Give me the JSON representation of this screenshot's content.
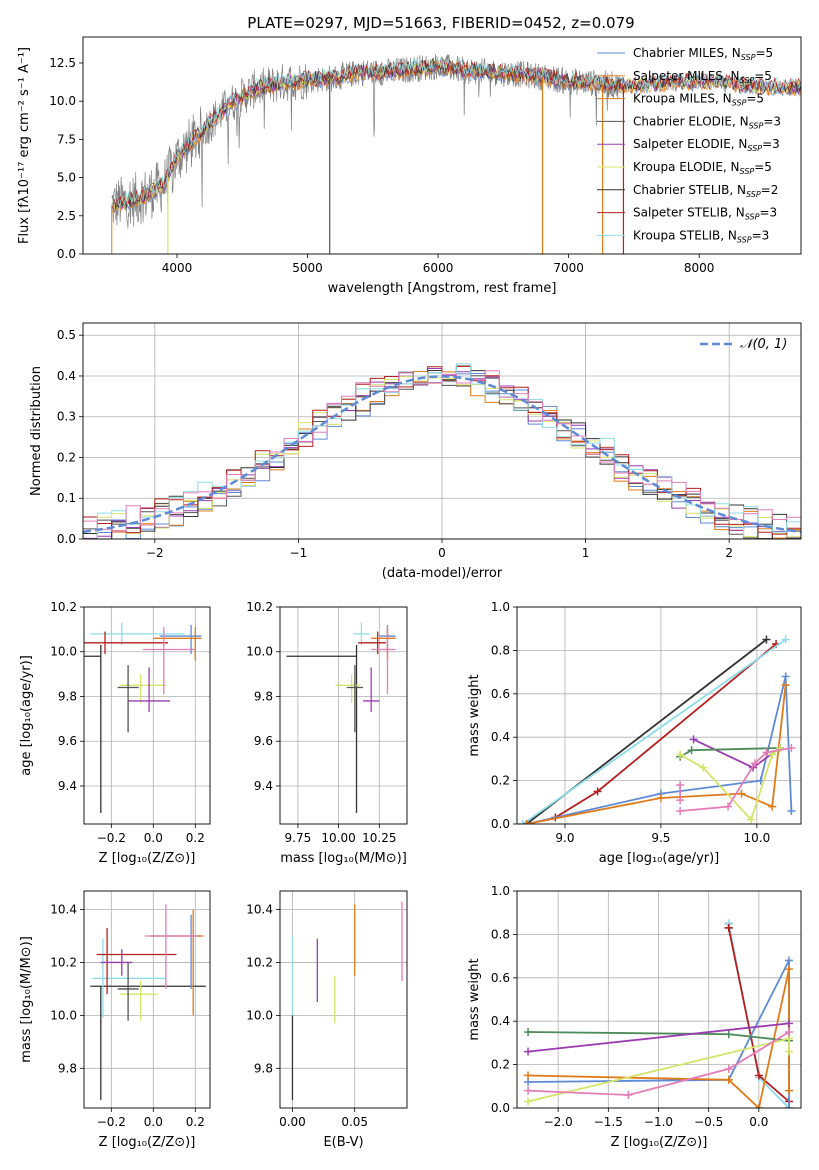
{
  "colors": {
    "Chabrier MILES": "#5e8ad6",
    "Salpeter MILES": "#e98d35",
    "Kroupa MILES": "#e07b1a",
    "Chabrier ELODIE": "#555555",
    "Salpeter ELODIE": "#9b3cb0",
    "Kroupa ELODIE": "#d4e46a",
    "Chabrier STELIB": "#333333",
    "Salpeter STELIB": "#b51f1f",
    "Kroupa STELIB": "#8fdde8",
    "pink": "#e37db8",
    "green": "#4e8b5a",
    "gauss": "#5e8ad6",
    "grid": "#b0b0b0"
  },
  "chart_data": [
    {
      "id": "spectrum",
      "type": "line",
      "title": "PLATE=0297, MJD=51663, FIBERID=0452, z=0.079",
      "xlabel": "wavelength [Angstrom, rest frame]",
      "ylabel": "Flux [fλ10⁻¹⁷ erg cm⁻² s⁻¹ A⁻¹]",
      "xlim": [
        3280,
        8780
      ],
      "ylim": [
        0,
        14.2
      ],
      "xticks": [
        4000,
        5000,
        6000,
        7000,
        8000
      ],
      "yticks": [
        0.0,
        2.5,
        5.0,
        7.5,
        10.0,
        12.5
      ],
      "grid": false,
      "legend": "upper right",
      "legend_entries": [
        {
          "label": "Chabrier MILES, N",
          "sub": "SSP",
          "tail": "=5"
        },
        {
          "label": "Salpeter MILES, N",
          "sub": "SSP",
          "tail": "=5"
        },
        {
          "label": "Kroupa MILES, N",
          "sub": "SSP",
          "tail": "=5"
        },
        {
          "label": "Chabrier ELODIE, N",
          "sub": "SSP",
          "tail": "=3"
        },
        {
          "label": "Salpeter ELODIE, N",
          "sub": "SSP",
          "tail": "=3"
        },
        {
          "label": "Kroupa ELODIE, N",
          "sub": "SSP",
          "tail": "=5"
        },
        {
          "label": "Chabrier STELIB, N",
          "sub": "SSP",
          "tail": "=2"
        },
        {
          "label": "Salpeter STELIB, N",
          "sub": "SSP",
          "tail": "=3"
        },
        {
          "label": "Kroupa STELIB, N",
          "sub": "SSP",
          "tail": "=3"
        }
      ],
      "continuum": {
        "x": [
          3500,
          3700,
          3900,
          4000,
          4200,
          4400,
          4600,
          4800,
          5000,
          5200,
          5400,
          5600,
          5800,
          6000,
          6200,
          6400,
          6600,
          6800,
          7000,
          7200,
          7400,
          7600,
          7800,
          8000,
          8200,
          8400,
          8780
        ],
        "y": [
          3.2,
          3.6,
          4.5,
          6.3,
          8.1,
          9.8,
          10.8,
          11.2,
          11.4,
          11.5,
          11.9,
          11.9,
          12.1,
          12.3,
          12.0,
          11.9,
          11.8,
          11.6,
          11.3,
          11.2,
          11.0,
          11.1,
          11.2,
          11.3,
          11.2,
          11.0,
          10.9
        ]
      },
      "data_range": [
        3500,
        7420
      ],
      "model_range": [
        3500,
        8780
      ],
      "drops": [
        {
          "x": 3500,
          "series": "Salpeter MILES"
        },
        {
          "x": 3930,
          "series": "Kroupa ELODIE"
        },
        {
          "x": 5170,
          "series": "Chabrier ELODIE"
        },
        {
          "x": 6800,
          "series": "Kroupa MILES"
        },
        {
          "x": 7260,
          "series": "Kroupa MILES"
        },
        {
          "x": 7420,
          "series": "Salpeter STELIB"
        }
      ]
    },
    {
      "id": "residuals",
      "type": "histogram",
      "xlabel": "(data-model)/error",
      "ylabel": "Normed distribution",
      "xlim": [
        -2.5,
        2.5
      ],
      "ylim": [
        0,
        0.53
      ],
      "xticks": [
        -2,
        -1,
        0,
        1,
        2
      ],
      "yticks": [
        0.0,
        0.1,
        0.2,
        0.3,
        0.4,
        0.5
      ],
      "grid": true,
      "legend": "upper right",
      "legend_label": "𝒩(0, 1)",
      "bin_width": 0.1,
      "gaussian": {
        "mean": 0,
        "sigma": 1
      }
    },
    {
      "id": "age-vs-Z",
      "type": "errorbar",
      "xlabel": "Z [log₁₀(Z/Z⊙)]",
      "ylabel": "age  [log₁₀(age/yr)]",
      "xlim": [
        -0.33,
        0.27
      ],
      "ylim": [
        9.23,
        10.2
      ],
      "xticks": [
        -0.2,
        0.0,
        0.2
      ],
      "yticks": [
        9.4,
        9.6,
        9.8,
        10.0,
        10.2
      ],
      "grid": true,
      "points": [
        {
          "series": "Chabrier STELIB",
          "x": -0.25,
          "y": 9.98,
          "xerr": [
            0.3,
            0.0
          ],
          "yerr": [
            0.7,
            0.05
          ]
        },
        {
          "series": "Kroupa STELIB",
          "x": -0.15,
          "y": 10.08,
          "xerr": [
            0.15,
            0.3
          ],
          "yerr": [
            0.05,
            0.05
          ]
        },
        {
          "series": "Salpeter STELIB",
          "x": -0.23,
          "y": 10.04,
          "xerr": [
            0.1,
            0.3
          ],
          "yerr": [
            0.05,
            0.05
          ]
        },
        {
          "series": "Kroupa ELODIE",
          "x": -0.06,
          "y": 9.85,
          "xerr": [
            0.1,
            0.12
          ],
          "yerr": [
            0.08,
            0.05
          ]
        },
        {
          "series": "Salpeter ELODIE",
          "x": -0.02,
          "y": 9.78,
          "xerr": [
            0.1,
            0.1
          ],
          "yerr": [
            0.05,
            0.15
          ]
        },
        {
          "series": "Chabrier MILES",
          "x": 0.18,
          "y": 10.07,
          "xerr": [
            0.15,
            0.05
          ],
          "yerr": [
            0.08,
            0.05
          ]
        },
        {
          "series": "Kroupa MILES",
          "x": 0.2,
          "y": 10.06,
          "xerr": [
            0.2,
            0.03
          ],
          "yerr": [
            0.1,
            0.05
          ]
        },
        {
          "series": "pink",
          "x": 0.05,
          "y": 10.01,
          "xerr": [
            0.1,
            0.15
          ],
          "yerr": [
            0.2,
            0.1
          ]
        },
        {
          "series": "Chabrier ELODIE",
          "x": -0.12,
          "y": 9.84,
          "xerr": [
            0.05,
            0.05
          ],
          "yerr": [
            0.2,
            0.1
          ]
        }
      ]
    },
    {
      "id": "age-vs-mass",
      "type": "errorbar",
      "xlabel": "mass [log₁₀(M/M⊙)]",
      "ylabel": "",
      "xlim": [
        9.64,
        10.42
      ],
      "ylim": [
        9.23,
        10.2
      ],
      "xticks": [
        9.75,
        10.0,
        10.25
      ],
      "yticks": [
        9.4,
        9.6,
        9.8,
        10.0,
        10.2
      ],
      "grid": true,
      "points": [
        {
          "series": "Chabrier STELIB",
          "x": 10.11,
          "y": 9.98,
          "xerr": [
            0.43,
            0.0
          ],
          "yerr": [
            0.7,
            0.05
          ]
        },
        {
          "series": "Kroupa STELIB",
          "x": 10.14,
          "y": 10.08,
          "xerr": [
            0.05,
            0.05
          ],
          "yerr": [
            0.05,
            0.05
          ]
        },
        {
          "series": "Salpeter STELIB",
          "x": 10.24,
          "y": 10.04,
          "xerr": [
            0.12,
            0.05
          ],
          "yerr": [
            0.05,
            0.05
          ]
        },
        {
          "series": "Kroupa ELODIE",
          "x": 10.08,
          "y": 9.85,
          "xerr": [
            0.1,
            0.05
          ],
          "yerr": [
            0.08,
            0.05
          ]
        },
        {
          "series": "Salpeter ELODIE",
          "x": 10.2,
          "y": 9.78,
          "xerr": [
            0.05,
            0.05
          ],
          "yerr": [
            0.05,
            0.15
          ]
        },
        {
          "series": "Chabrier MILES",
          "x": 10.3,
          "y": 10.07,
          "xerr": [
            0.05,
            0.05
          ],
          "yerr": [
            0.08,
            0.05
          ]
        },
        {
          "series": "Kroupa MILES",
          "x": 10.3,
          "y": 10.06,
          "xerr": [
            0.1,
            0.05
          ],
          "yerr": [
            0.1,
            0.05
          ]
        },
        {
          "series": "pink",
          "x": 10.3,
          "y": 10.01,
          "xerr": [
            0.1,
            0.05
          ],
          "yerr": [
            0.2,
            0.1
          ]
        },
        {
          "series": "Chabrier ELODIE",
          "x": 10.1,
          "y": 9.84,
          "xerr": [
            0.05,
            0.05
          ],
          "yerr": [
            0.2,
            0.1
          ]
        }
      ]
    },
    {
      "id": "weight-vs-age",
      "type": "line",
      "xlabel": "age  [log₁₀(age/yr)]",
      "ylabel": "mass weight",
      "xlim": [
        8.75,
        10.23
      ],
      "ylim": [
        0,
        1.0
      ],
      "xticks": [
        9.0,
        9.5,
        10.0
      ],
      "yticks": [
        0.0,
        0.2,
        0.4,
        0.6,
        0.8,
        1.0
      ],
      "grid": true,
      "series": [
        {
          "name": "Chabrier STELIB",
          "x": [
            8.8,
            10.05
          ],
          "y": [
            0.0,
            0.85
          ]
        },
        {
          "name": "Salpeter STELIB",
          "x": [
            8.95,
            9.17,
            10.1
          ],
          "y": [
            0.03,
            0.15,
            0.83
          ]
        },
        {
          "name": "Kroupa STELIB",
          "x": [
            8.78,
            10.15
          ],
          "y": [
            0.0,
            0.85
          ]
        },
        {
          "name": "Chabrier MILES",
          "x": [
            8.8,
            9.5,
            10.02,
            10.15,
            10.18
          ],
          "y": [
            0.0,
            0.14,
            0.2,
            0.68,
            0.06
          ]
        },
        {
          "name": "Kroupa MILES",
          "x": [
            8.8,
            9.5,
            9.92,
            10.08,
            10.15
          ],
          "y": [
            0.0,
            0.12,
            0.14,
            0.08,
            0.64
          ]
        },
        {
          "name": "Salpeter ELODIE",
          "x": [
            9.67,
            9.98,
            10.12
          ],
          "y": [
            0.39,
            0.26,
            0.35
          ]
        },
        {
          "name": "green",
          "x": [
            9.6,
            9.66,
            10.12
          ],
          "y": [
            0.31,
            0.34,
            0.35
          ]
        },
        {
          "name": "Kroupa ELODIE",
          "x": [
            9.6,
            9.72,
            9.97,
            10.08,
            10.12
          ],
          "y": [
            0.32,
            0.26,
            0.02,
            0.32,
            0.35
          ]
        },
        {
          "name": "pink",
          "x": [
            9.6,
            9.85,
            9.99,
            10.05,
            10.18
          ],
          "y": [
            0.06,
            0.08,
            0.28,
            0.33,
            0.35
          ]
        },
        {
          "name": "pink",
          "x": [
            9.6,
            9.6
          ],
          "y": [
            0.11,
            0.18
          ]
        }
      ]
    },
    {
      "id": "mass-vs-Z",
      "type": "errorbar",
      "xlabel": "Z [log₁₀(Z/Z⊙)]",
      "ylabel": "mass [log₁₀(M/M⊙)]",
      "xlim": [
        -0.33,
        0.27
      ],
      "ylim": [
        9.65,
        10.47
      ],
      "xticks": [
        -0.2,
        0.0,
        0.2
      ],
      "yticks": [
        9.8,
        10.0,
        10.2,
        10.4
      ],
      "grid": true,
      "points": [
        {
          "series": "Chabrier STELIB",
          "x": -0.25,
          "y": 10.11,
          "xerr": [
            0.05,
            0.5
          ],
          "yerr": [
            0.43,
            0.0
          ]
        },
        {
          "series": "Kroupa STELIB",
          "x": -0.24,
          "y": 10.14,
          "xerr": [
            0.05,
            0.3
          ],
          "yerr": [
            0.15,
            0.15
          ]
        },
        {
          "series": "Salpeter STELIB",
          "x": -0.22,
          "y": 10.23,
          "xerr": [
            0.05,
            0.33
          ],
          "yerr": [
            0.15,
            0.1
          ]
        },
        {
          "series": "Kroupa ELODIE",
          "x": -0.06,
          "y": 10.08,
          "xerr": [
            0.1,
            0.08
          ],
          "yerr": [
            0.1,
            0.05
          ]
        },
        {
          "series": "Salpeter ELODIE",
          "x": -0.15,
          "y": 10.2,
          "xerr": [
            0.1,
            0.05
          ],
          "yerr": [
            0.05,
            0.05
          ]
        },
        {
          "series": "Chabrier MILES",
          "x": 0.18,
          "y": 10.3,
          "xerr": [
            0.2,
            0.05
          ],
          "yerr": [
            0.2,
            0.08
          ]
        },
        {
          "series": "Kroupa MILES",
          "x": 0.19,
          "y": 10.3,
          "xerr": [
            0.2,
            0.05
          ],
          "yerr": [
            0.3,
            0.1
          ]
        },
        {
          "series": "pink",
          "x": 0.06,
          "y": 10.3,
          "xerr": [
            0.1,
            0.15
          ],
          "yerr": [
            0.2,
            0.12
          ]
        },
        {
          "series": "Chabrier ELODIE",
          "x": -0.12,
          "y": 10.1,
          "xerr": [
            0.05,
            0.05
          ],
          "yerr": [
            0.12,
            0.1
          ]
        }
      ]
    },
    {
      "id": "mass-vs-EBV",
      "type": "errorbar",
      "xlabel": "E(B-V)",
      "ylabel": "",
      "xlim": [
        -0.01,
        0.092
      ],
      "ylim": [
        9.65,
        10.47
      ],
      "xticks": [
        0.0,
        0.05
      ],
      "yticks": [
        9.8,
        10.0,
        10.2,
        10.4
      ],
      "grid": true,
      "points": [
        {
          "series": "Chabrier STELIB",
          "x": 0.0,
          "y": 9.88,
          "yerr": [
            0.2,
            0.12
          ]
        },
        {
          "series": "Kroupa STELIB",
          "x": 0.0,
          "y": 10.15,
          "yerr": [
            0.15,
            0.15
          ]
        },
        {
          "series": "Salpeter ELODIE",
          "x": 0.02,
          "y": 10.15,
          "yerr": [
            0.1,
            0.14
          ]
        },
        {
          "series": "Kroupa ELODIE",
          "x": 0.034,
          "y": 10.05,
          "yerr": [
            0.08,
            0.1
          ]
        },
        {
          "series": "Kroupa MILES",
          "x": 0.05,
          "y": 10.3,
          "yerr": [
            0.15,
            0.12
          ]
        },
        {
          "series": "pink",
          "x": 0.088,
          "y": 10.28,
          "yerr": [
            0.15,
            0.15
          ]
        }
      ]
    },
    {
      "id": "weight-vs-Z",
      "type": "line",
      "xlabel": "Z [log₁₀(Z/Z⊙)]",
      "ylabel": "mass weight",
      "xlim": [
        -2.41,
        0.42
      ],
      "ylim": [
        0,
        1.0
      ],
      "xticks": [
        -2.0,
        -1.5,
        -1.0,
        -0.5,
        0.0
      ],
      "yticks": [
        0.0,
        0.2,
        0.4,
        0.6,
        0.8,
        1.0
      ],
      "grid": true,
      "series": [
        {
          "name": "Chabrier STELIB",
          "x": [
            -0.3,
            -0.3
          ],
          "y": [
            0.85,
            0.83
          ]
        },
        {
          "name": "Kroupa STELIB",
          "x": [
            -0.3,
            0.0,
            0.3
          ],
          "y": [
            0.85,
            0.14,
            0.0
          ]
        },
        {
          "name": "Salpeter STELIB",
          "x": [
            -0.3,
            0.0,
            0.3
          ],
          "y": [
            0.83,
            0.15,
            0.03
          ]
        },
        {
          "name": "Chabrier MILES",
          "x": [
            -2.3,
            -0.3,
            0.3,
            0.3
          ],
          "y": [
            0.12,
            0.13,
            0.68,
            0.0
          ]
        },
        {
          "name": "Kroupa MILES",
          "x": [
            -2.3,
            -0.3,
            0.0,
            0.3,
            0.3
          ],
          "y": [
            0.15,
            0.13,
            0.0,
            0.64,
            0.08
          ]
        },
        {
          "name": "green",
          "x": [
            -2.3,
            -0.3,
            0.3
          ],
          "y": [
            0.35,
            0.34,
            0.31
          ]
        },
        {
          "name": "Salpeter ELODIE",
          "x": [
            -2.3,
            0.3
          ],
          "y": [
            0.26,
            0.39
          ]
        },
        {
          "name": "Kroupa ELODIE",
          "x": [
            -2.3,
            0.3,
            0.3
          ],
          "y": [
            0.03,
            0.32,
            0.26
          ]
        },
        {
          "name": "pink",
          "x": [
            -2.3,
            -1.3,
            -0.3,
            0.3
          ],
          "y": [
            0.08,
            0.06,
            0.18,
            0.35
          ]
        }
      ]
    }
  ]
}
